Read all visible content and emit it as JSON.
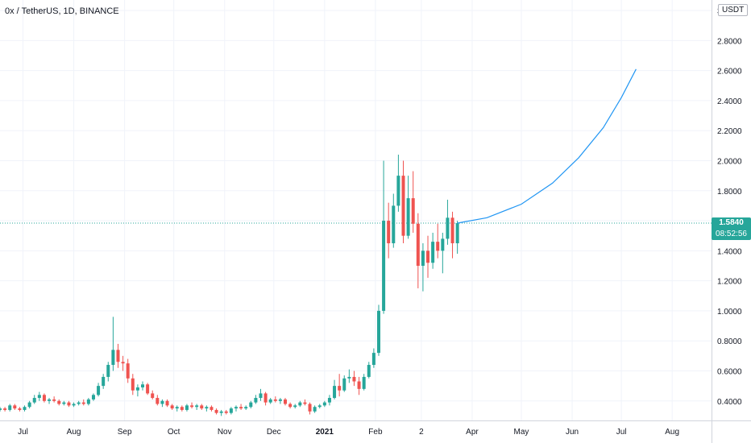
{
  "header": {
    "title": "0x / TetherUS, 1D, BINANCE"
  },
  "currency_badge": "USDT",
  "last_price": {
    "label": "1.5840",
    "value": 1.584,
    "countdown": "08:52:56",
    "color": "#26a69a"
  },
  "colors": {
    "up": "#26a69a",
    "down": "#ef5350",
    "projection": "#2196f3",
    "grid": "#f0f3fa"
  },
  "chart_data": {
    "type": "candlestick",
    "ylim": [
      0.27,
      3.07
    ],
    "y_ticks": [
      "0.4000",
      "0.6000",
      "0.8000",
      "1.0000",
      "1.2000",
      "1.4000",
      "1.6000",
      "1.8000",
      "2.0000",
      "2.2000",
      "2.4000",
      "2.6000",
      "2.8000",
      "3"
    ],
    "x_ticks": [
      "Jul",
      "Aug",
      "Sep",
      "Oct",
      "Nov",
      "Dec",
      "2021",
      "Feb",
      "2",
      "Apr",
      "May",
      "Jun",
      "Jul",
      "Aug"
    ],
    "x_tick_dates": [
      "2020-07-01",
      "2020-08-01",
      "2020-09-01",
      "2020-10-01",
      "2020-11-01",
      "2020-12-01",
      "2021-01-01",
      "2021-02-01",
      "2021-03-01",
      "2021-04-01",
      "2021-05-01",
      "2021-06-01",
      "2021-07-01",
      "2021-08-01"
    ],
    "x_range": [
      "2020-06-17",
      "2021-08-25"
    ],
    "candles": [
      [
        "2020-06-17",
        0.34,
        0.36,
        0.33,
        0.35
      ],
      [
        "2020-06-20",
        0.35,
        0.36,
        0.33,
        0.34
      ],
      [
        "2020-06-23",
        0.34,
        0.38,
        0.33,
        0.37
      ],
      [
        "2020-06-26",
        0.37,
        0.38,
        0.34,
        0.35
      ],
      [
        "2020-06-29",
        0.35,
        0.36,
        0.33,
        0.34
      ],
      [
        "2020-07-02",
        0.34,
        0.37,
        0.33,
        0.36
      ],
      [
        "2020-07-05",
        0.36,
        0.4,
        0.35,
        0.39
      ],
      [
        "2020-07-08",
        0.39,
        0.44,
        0.38,
        0.42
      ],
      [
        "2020-07-11",
        0.42,
        0.46,
        0.4,
        0.44
      ],
      [
        "2020-07-14",
        0.44,
        0.45,
        0.39,
        0.4
      ],
      [
        "2020-07-17",
        0.4,
        0.42,
        0.38,
        0.41
      ],
      [
        "2020-07-20",
        0.41,
        0.43,
        0.39,
        0.4
      ],
      [
        "2020-07-23",
        0.4,
        0.41,
        0.37,
        0.38
      ],
      [
        "2020-07-26",
        0.38,
        0.4,
        0.37,
        0.39
      ],
      [
        "2020-07-29",
        0.39,
        0.4,
        0.36,
        0.37
      ],
      [
        "2020-08-01",
        0.37,
        0.39,
        0.36,
        0.38
      ],
      [
        "2020-08-04",
        0.38,
        0.4,
        0.37,
        0.39
      ],
      [
        "2020-08-07",
        0.39,
        0.41,
        0.37,
        0.38
      ],
      [
        "2020-08-10",
        0.38,
        0.42,
        0.37,
        0.41
      ],
      [
        "2020-08-13",
        0.41,
        0.45,
        0.4,
        0.44
      ],
      [
        "2020-08-16",
        0.44,
        0.52,
        0.43,
        0.5
      ],
      [
        "2020-08-19",
        0.5,
        0.58,
        0.48,
        0.56
      ],
      [
        "2020-08-22",
        0.56,
        0.66,
        0.53,
        0.64
      ],
      [
        "2020-08-25",
        0.64,
        0.96,
        0.6,
        0.74
      ],
      [
        "2020-08-28",
        0.74,
        0.78,
        0.62,
        0.66
      ],
      [
        "2020-08-31",
        0.66,
        0.7,
        0.6,
        0.65
      ],
      [
        "2020-09-03",
        0.65,
        0.68,
        0.52,
        0.55
      ],
      [
        "2020-09-06",
        0.55,
        0.58,
        0.44,
        0.47
      ],
      [
        "2020-09-09",
        0.47,
        0.51,
        0.43,
        0.49
      ],
      [
        "2020-09-12",
        0.49,
        0.53,
        0.47,
        0.51
      ],
      [
        "2020-09-15",
        0.51,
        0.52,
        0.44,
        0.45
      ],
      [
        "2020-09-18",
        0.45,
        0.47,
        0.41,
        0.42
      ],
      [
        "2020-09-21",
        0.42,
        0.44,
        0.37,
        0.38
      ],
      [
        "2020-09-24",
        0.38,
        0.41,
        0.36,
        0.4
      ],
      [
        "2020-09-27",
        0.4,
        0.41,
        0.36,
        0.37
      ],
      [
        "2020-09-30",
        0.37,
        0.38,
        0.34,
        0.35
      ],
      [
        "2020-10-03",
        0.35,
        0.37,
        0.33,
        0.36
      ],
      [
        "2020-10-06",
        0.36,
        0.37,
        0.33,
        0.34
      ],
      [
        "2020-10-09",
        0.34,
        0.38,
        0.33,
        0.37
      ],
      [
        "2020-10-12",
        0.37,
        0.39,
        0.35,
        0.36
      ],
      [
        "2020-10-15",
        0.36,
        0.38,
        0.34,
        0.37
      ],
      [
        "2020-10-18",
        0.37,
        0.38,
        0.34,
        0.35
      ],
      [
        "2020-10-21",
        0.35,
        0.37,
        0.33,
        0.36
      ],
      [
        "2020-10-24",
        0.36,
        0.37,
        0.33,
        0.34
      ],
      [
        "2020-10-27",
        0.34,
        0.35,
        0.31,
        0.32
      ],
      [
        "2020-10-30",
        0.32,
        0.34,
        0.3,
        0.33
      ],
      [
        "2020-11-02",
        0.33,
        0.34,
        0.31,
        0.32
      ],
      [
        "2020-11-05",
        0.32,
        0.36,
        0.31,
        0.35
      ],
      [
        "2020-11-08",
        0.35,
        0.37,
        0.33,
        0.36
      ],
      [
        "2020-11-11",
        0.36,
        0.38,
        0.34,
        0.35
      ],
      [
        "2020-11-14",
        0.35,
        0.37,
        0.34,
        0.36
      ],
      [
        "2020-11-17",
        0.36,
        0.4,
        0.35,
        0.39
      ],
      [
        "2020-11-20",
        0.39,
        0.44,
        0.38,
        0.42
      ],
      [
        "2020-11-23",
        0.42,
        0.48,
        0.4,
        0.45
      ],
      [
        "2020-11-26",
        0.45,
        0.46,
        0.37,
        0.39
      ],
      [
        "2020-11-29",
        0.39,
        0.42,
        0.38,
        0.41
      ],
      [
        "2020-12-02",
        0.41,
        0.43,
        0.39,
        0.4
      ],
      [
        "2020-12-05",
        0.4,
        0.42,
        0.38,
        0.41
      ],
      [
        "2020-12-08",
        0.41,
        0.42,
        0.37,
        0.38
      ],
      [
        "2020-12-11",
        0.38,
        0.39,
        0.35,
        0.36
      ],
      [
        "2020-12-14",
        0.36,
        0.38,
        0.35,
        0.37
      ],
      [
        "2020-12-17",
        0.37,
        0.4,
        0.36,
        0.39
      ],
      [
        "2020-12-20",
        0.39,
        0.41,
        0.37,
        0.38
      ],
      [
        "2020-12-23",
        0.38,
        0.39,
        0.31,
        0.33
      ],
      [
        "2020-12-26",
        0.33,
        0.37,
        0.32,
        0.36
      ],
      [
        "2020-12-29",
        0.36,
        0.38,
        0.35,
        0.37
      ],
      [
        "2021-01-01",
        0.37,
        0.4,
        0.36,
        0.39
      ],
      [
        "2021-01-04",
        0.39,
        0.44,
        0.37,
        0.42
      ],
      [
        "2021-01-07",
        0.42,
        0.54,
        0.41,
        0.5
      ],
      [
        "2021-01-10",
        0.5,
        0.58,
        0.43,
        0.47
      ],
      [
        "2021-01-13",
        0.47,
        0.57,
        0.46,
        0.55
      ],
      [
        "2021-01-16",
        0.55,
        0.61,
        0.52,
        0.56
      ],
      [
        "2021-01-19",
        0.56,
        0.6,
        0.5,
        0.53
      ],
      [
        "2021-01-22",
        0.53,
        0.56,
        0.44,
        0.48
      ],
      [
        "2021-01-25",
        0.48,
        0.58,
        0.47,
        0.56
      ],
      [
        "2021-01-28",
        0.56,
        0.66,
        0.55,
        0.64
      ],
      [
        "2021-01-31",
        0.64,
        0.75,
        0.62,
        0.72
      ],
      [
        "2021-02-03",
        0.72,
        1.04,
        0.7,
        1.0
      ],
      [
        "2021-02-06",
        1.0,
        2.0,
        0.98,
        1.6
      ],
      [
        "2021-02-09",
        1.6,
        1.72,
        1.35,
        1.45
      ],
      [
        "2021-02-12",
        1.45,
        1.78,
        1.42,
        1.7
      ],
      [
        "2021-02-15",
        1.7,
        2.04,
        1.66,
        1.9
      ],
      [
        "2021-02-18",
        1.9,
        2.0,
        1.45,
        1.5
      ],
      [
        "2021-02-21",
        1.5,
        1.9,
        1.48,
        1.75
      ],
      [
        "2021-02-24",
        1.75,
        1.93,
        1.52,
        1.58
      ],
      [
        "2021-02-27",
        1.58,
        1.65,
        1.15,
        1.3
      ],
      [
        "2021-03-02",
        1.3,
        1.45,
        1.13,
        1.4
      ],
      [
        "2021-03-05",
        1.4,
        1.5,
        1.22,
        1.32
      ],
      [
        "2021-03-08",
        1.32,
        1.52,
        1.28,
        1.46
      ],
      [
        "2021-03-11",
        1.46,
        1.58,
        1.35,
        1.4
      ],
      [
        "2021-03-14",
        1.4,
        1.52,
        1.25,
        1.48
      ],
      [
        "2021-03-17",
        1.48,
        1.74,
        1.44,
        1.62
      ],
      [
        "2021-03-20",
        1.62,
        1.66,
        1.35,
        1.45
      ],
      [
        "2021-03-23",
        1.45,
        1.6,
        1.38,
        1.584
      ]
    ],
    "projection": [
      [
        "2021-03-23",
        1.584
      ],
      [
        "2021-04-10",
        1.62
      ],
      [
        "2021-05-01",
        1.71
      ],
      [
        "2021-05-20",
        1.85
      ],
      [
        "2021-06-05",
        2.02
      ],
      [
        "2021-06-20",
        2.22
      ],
      [
        "2021-07-01",
        2.42
      ],
      [
        "2021-07-10",
        2.61
      ]
    ]
  }
}
